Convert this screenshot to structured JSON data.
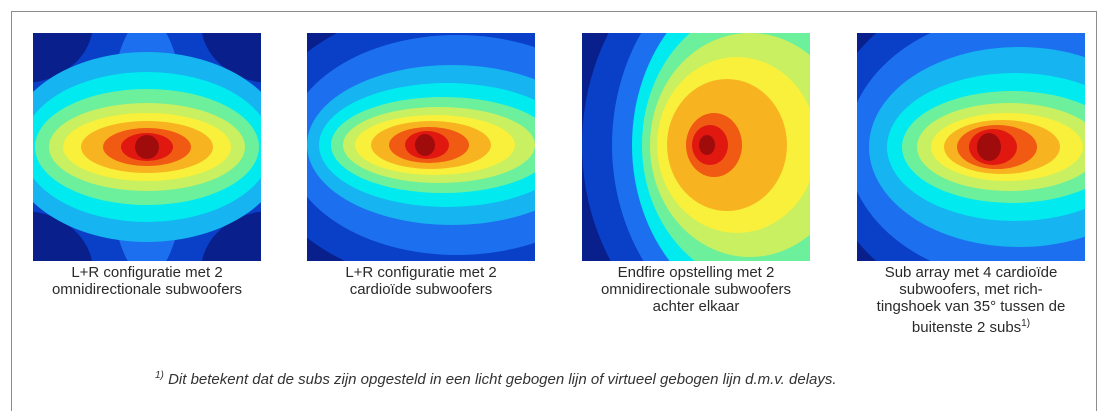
{
  "panels": [
    {
      "id": "lr-omni",
      "caption_lines": [
        "L+R configuratie met 2",
        "omnidirectionale subwoofers"
      ],
      "pattern": "dual-omni"
    },
    {
      "id": "lr-cardioid",
      "caption_lines": [
        "L+R configuratie met 2",
        "cardioïde subwoofers"
      ],
      "pattern": "dual-cardioid"
    },
    {
      "id": "endfire",
      "caption_lines": [
        "Endfire opstelling met 2",
        "omnidirectionale subwoofers",
        "achter elkaar"
      ],
      "pattern": "endfire"
    },
    {
      "id": "sub-array",
      "caption_lines": [
        "Sub array met 4 cardioïde",
        "subwoofers, met rich-",
        "tingshoek van 35° tussen de",
        "buitenste 2 subs"
      ],
      "caption_sup": "1)",
      "pattern": "array"
    }
  ],
  "footnote": {
    "marker": "1)",
    "text": " Dit betekent dat de subs zijn opgesteld in een licht gebogen lijn of virtueel gebogen lijn d.m.v. delays."
  },
  "colormap": [
    "#081f8c",
    "#0a3fc8",
    "#1c70f0",
    "#16b4f0",
    "#00eaf0",
    "#6cf09c",
    "#c9f060",
    "#f8f03a",
    "#f8b420",
    "#f05a12",
    "#e01810",
    "#a00c0c"
  ]
}
